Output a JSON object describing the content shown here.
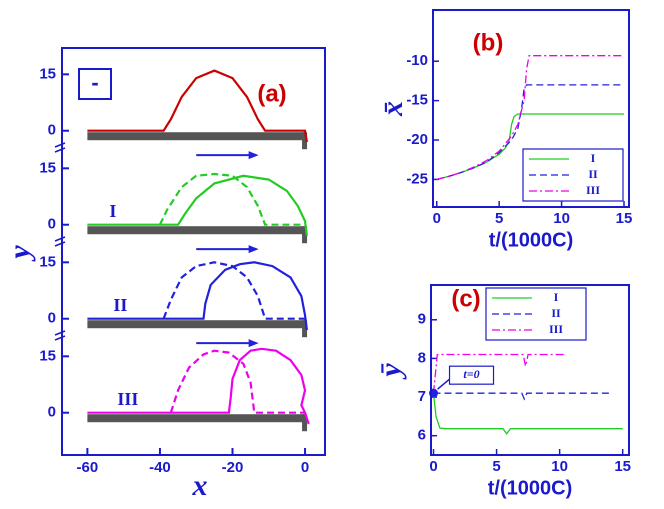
{
  "chart_data": [
    {
      "type": "droplets",
      "title": "(a)",
      "xlabel": "x",
      "ylabel": "y",
      "annotation": "-",
      "xlim": [
        -67,
        5.5
      ],
      "ylim": [
        -3,
        22
      ],
      "xticks": [
        -60,
        -40,
        -20,
        0
      ],
      "yticks": [
        0,
        15
      ],
      "panels": [
        {
          "series": [
            {
              "color": "#cc0000",
              "style": "solid",
              "x": [
                -60,
                -39,
                -37,
                -34,
                -30,
                -25,
                -20,
                -16,
                -13,
                -11,
                0,
                0.5
              ],
              "values": [
                0,
                0,
                3,
                9,
                14,
                16,
                14,
                9,
                3,
                0,
                0,
                -3
              ]
            }
          ]
        },
        {
          "label": "I",
          "series": [
            {
              "color": "#22cc22",
              "style": "solid",
              "x": [
                -60,
                -35,
                -33,
                -30,
                -25,
                -17,
                -10,
                -5,
                -2,
                0,
                0.5
              ],
              "values": [
                0,
                0,
                3,
                7,
                11,
                13,
                12,
                9,
                5,
                1,
                -3
              ]
            },
            {
              "color": "#22cc22",
              "style": "dashed",
              "x": [
                -40,
                -38,
                -34,
                -30,
                -25,
                -20,
                -16,
                -13,
                -11,
                0
              ],
              "values": [
                0,
                4,
                10,
                13,
                13.5,
                13,
                10,
                5,
                0,
                0
              ]
            }
          ]
        },
        {
          "label": "II",
          "series": [
            {
              "color": "#2222dd",
              "style": "solid",
              "x": [
                -60,
                -28,
                -27.5,
                -26,
                -22,
                -18,
                -14,
                -9,
                -4,
                -1,
                0,
                0.5
              ],
              "values": [
                0,
                0,
                4,
                9,
                13,
                14.5,
                15,
                14,
                11,
                6,
                1,
                -3
              ]
            },
            {
              "color": "#2222dd",
              "style": "dashed",
              "x": [
                -39,
                -37,
                -34,
                -30,
                -25,
                -20,
                -16,
                -13,
                -11,
                0
              ],
              "values": [
                0,
                5,
                11,
                14,
                15,
                14,
                11,
                6,
                0,
                0
              ]
            }
          ]
        },
        {
          "label": "III",
          "series": [
            {
              "color": "#ee00ee",
              "style": "solid",
              "x": [
                -60,
                -21,
                -20.5,
                -20,
                -18,
                -15,
                -12,
                -8,
                -4,
                -1,
                0,
                -1,
                0,
                1
              ],
              "values": [
                0,
                0,
                4,
                9,
                14,
                16.5,
                17,
                16.5,
                14,
                10,
                6,
                2,
                0,
                -3
              ]
            },
            {
              "color": "#ee00ee",
              "style": "dashed",
              "x": [
                -37,
                -35,
                -32,
                -28,
                -25,
                -21,
                -17,
                -15,
                -14,
                0
              ],
              "values": [
                0,
                6,
                12,
                15.5,
                16.5,
                16,
                13,
                8,
                0,
                0
              ]
            }
          ]
        }
      ]
    },
    {
      "type": "line",
      "title": "(b)",
      "xlabel": "t/(1000C)",
      "ylabel": "x̄",
      "xlim": [
        -0.3,
        15.4
      ],
      "ylim": [
        -28.5,
        -3.5
      ],
      "xticks": [
        0,
        5,
        10,
        15
      ],
      "yticks": [
        -25,
        -20,
        -15,
        -10
      ],
      "legend": "lower right",
      "series": [
        {
          "name": "I",
          "color": "#22cc22",
          "style": "solid",
          "x": [
            0,
            1,
            2,
            3,
            4,
            5,
            5.5,
            5.8,
            6,
            6.2,
            6.5,
            15
          ],
          "values": [
            -25,
            -24.6,
            -24.1,
            -23.5,
            -22.8,
            -21.8,
            -21,
            -20,
            -18,
            -17,
            -16.7,
            -16.7
          ]
        },
        {
          "name": "II",
          "color": "#2222dd",
          "style": "dashed",
          "x": [
            0,
            1,
            2,
            3,
            4,
            5,
            6,
            6.5,
            6.8,
            7,
            7.2,
            15
          ],
          "values": [
            -25,
            -24.6,
            -24.1,
            -23.5,
            -22.8,
            -21.6,
            -20,
            -18.5,
            -16,
            -13.5,
            -13,
            -13
          ]
        },
        {
          "name": "III",
          "color": "#ee00ee",
          "style": "dashdot",
          "x": [
            0,
            1,
            2,
            3,
            4,
            5,
            6,
            6.5,
            7,
            7.2,
            7.4,
            15
          ],
          "values": [
            -25,
            -24.6,
            -24.1,
            -23.4,
            -22.6,
            -21.4,
            -19.5,
            -18,
            -15,
            -11,
            -9.3,
            -9.3
          ]
        }
      ]
    },
    {
      "type": "line",
      "title": "(c)",
      "xlabel": "t/(1000C)",
      "ylabel": "ȳ",
      "xlim": [
        -0.2,
        15.5
      ],
      "ylim": [
        5.5,
        9.9
      ],
      "xticks": [
        0,
        5,
        10,
        15
      ],
      "yticks": [
        6,
        7,
        8,
        9
      ],
      "legend": "upper center",
      "marker": {
        "x": 0,
        "y": 7.1,
        "label": "t=0"
      },
      "series": [
        {
          "name": "I",
          "color": "#22cc22",
          "style": "solid",
          "x": [
            0,
            0.2,
            0.5,
            1,
            5.5,
            5.8,
            6.1,
            6.5,
            15
          ],
          "values": [
            7.1,
            6.5,
            6.2,
            6.18,
            6.18,
            6.05,
            6.18,
            6.18,
            6.18
          ]
        },
        {
          "name": "II",
          "color": "#2222dd",
          "style": "dashed",
          "x": [
            0,
            0.5,
            7,
            7.2,
            7.4,
            8,
            14
          ],
          "values": [
            7.1,
            7.1,
            7.1,
            6.95,
            7.1,
            7.1,
            7.1
          ]
        },
        {
          "name": "III",
          "color": "#ee00ee",
          "style": "dashdot",
          "x": [
            0,
            0.3,
            1,
            7.1,
            7.3,
            7.5,
            8,
            10.5
          ],
          "values": [
            7.1,
            8.1,
            8.1,
            8.1,
            7.8,
            8.1,
            8.1,
            8.1
          ]
        }
      ]
    }
  ]
}
